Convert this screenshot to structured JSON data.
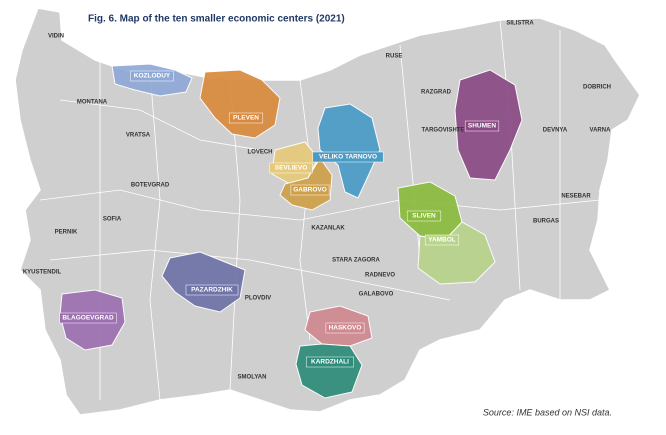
{
  "title": "Fig. 6. Map of the ten smaller economic centers (2021)",
  "source": "Source: IME based on NSI data.",
  "centers": [
    {
      "name": "KOZLODUY",
      "color": "#8fa9d6"
    },
    {
      "name": "PLEVEN",
      "color": "#d98a3d"
    },
    {
      "name": "VELIKO TARNOVO",
      "color": "#4a9cc7"
    },
    {
      "name": "SEVLIEVO",
      "color": "#e6c97a"
    },
    {
      "name": "GABROVO",
      "color": "#cfa04a"
    },
    {
      "name": "SHUMEN",
      "color": "#8a4a84"
    },
    {
      "name": "SLIVEN",
      "color": "#8bbb3e"
    },
    {
      "name": "YAMBOL",
      "color": "#b9d38b"
    },
    {
      "name": "PAZARDZHIK",
      "color": "#6f73a8"
    },
    {
      "name": "BLAGOEVGRAD",
      "color": "#9d6fb1"
    },
    {
      "name": "HASKOVO",
      "color": "#d0888f"
    },
    {
      "name": "KARDZHALI",
      "color": "#2e8c7a"
    }
  ],
  "cities": [
    "VIDIN",
    "MONTANA",
    "VRATSA",
    "LOVECH",
    "BOTEVGRAD",
    "SOFIA",
    "PERNIK",
    "KYUSTENDIL",
    "RUSE",
    "RAZGRAD",
    "TARGOVISHTE",
    "SILISTRA",
    "DOBRICH",
    "DEVNYA",
    "VARNA",
    "NESEBAR",
    "BURGAS",
    "STARA ZAGORA",
    "KAZANLAK",
    "RADNEVO",
    "GALABOVO",
    "PLOVDIV",
    "SMOLYAN"
  ]
}
